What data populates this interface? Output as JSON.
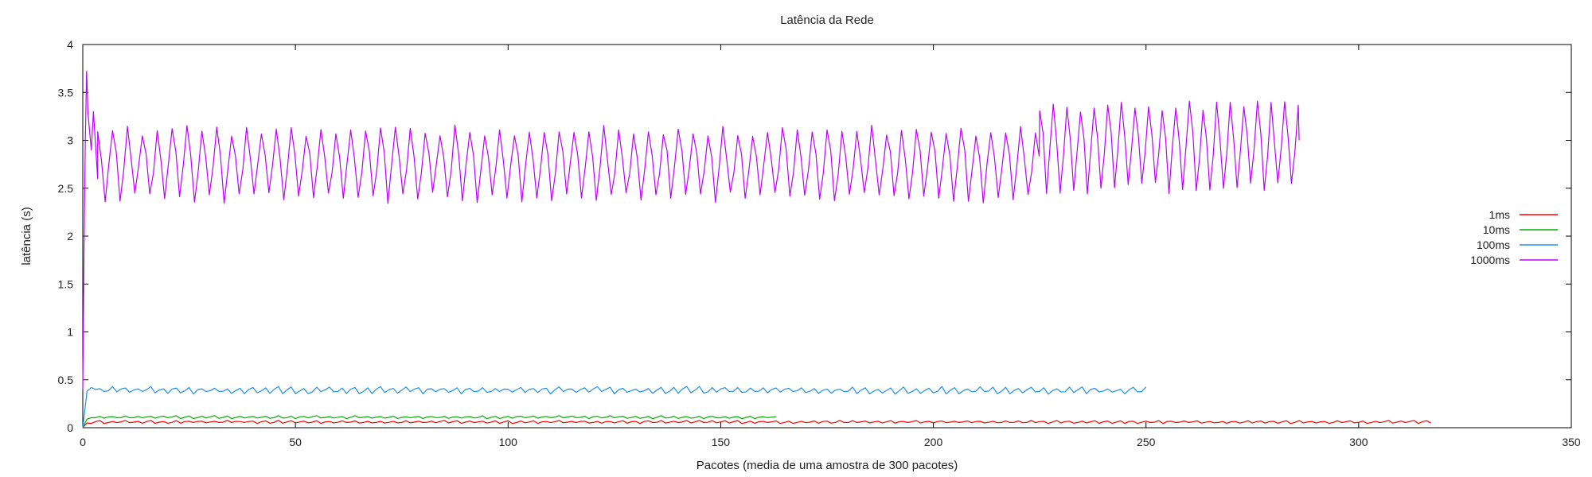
{
  "chart_data": {
    "type": "line",
    "title": "Latência da Rede",
    "xlabel": "Pacotes (media de uma amostra de 300 pacotes)",
    "ylabel": "latência (s)",
    "xlim": [
      0,
      350
    ],
    "ylim": [
      0,
      4
    ],
    "xticks": [
      "0",
      "50",
      "100",
      "150",
      "200",
      "250",
      "300",
      "350"
    ],
    "yticks": [
      "0",
      "0.5",
      "1",
      "1.5",
      "2",
      "2.5",
      "3",
      "3.5",
      "4"
    ],
    "grid": false,
    "legend_position": "right",
    "series": [
      {
        "name": "1ms",
        "color": "#ff0000",
        "x_max": 317,
        "pattern": {
          "base": 0.06,
          "amplitude": 0.012,
          "period": 3
        },
        "start": [
          [
            0,
            0
          ],
          [
            1,
            0.05
          ]
        ]
      },
      {
        "name": "10ms",
        "color": "#00b000",
        "x_max": 163,
        "pattern": {
          "base": 0.11,
          "amplitude": 0.012,
          "period": 3
        },
        "start": [
          [
            0,
            0
          ],
          [
            1,
            0.09
          ]
        ]
      },
      {
        "name": "100ms",
        "color": "#1e8ff0",
        "x_max": 250,
        "pattern": {
          "base": 0.39,
          "amplitude": 0.03,
          "period": 3
        },
        "start": [
          [
            0,
            0
          ],
          [
            1,
            0.38
          ],
          [
            2,
            0.42
          ],
          [
            3,
            0.4
          ]
        ]
      },
      {
        "name": "1000ms",
        "color": "#c000ff",
        "x_max": 286,
        "start": [
          [
            0,
            0.4
          ],
          [
            0.3,
            1.9
          ],
          [
            0.6,
            3.0
          ],
          [
            0.9,
            3.72
          ],
          [
            1.2,
            3.3
          ],
          [
            1.6,
            3.1
          ],
          [
            2.0,
            2.9
          ],
          [
            2.5,
            3.3
          ],
          [
            3.0,
            2.95
          ],
          [
            3.5,
            2.6
          ]
        ],
        "segments": [
          {
            "from": 3.5,
            "to": 225,
            "min": 2.4,
            "max": 3.1,
            "period": 3.5
          },
          {
            "from": 225,
            "to": 286,
            "min": 2.5,
            "max": 3.35,
            "period": 3.2
          }
        ]
      }
    ]
  }
}
